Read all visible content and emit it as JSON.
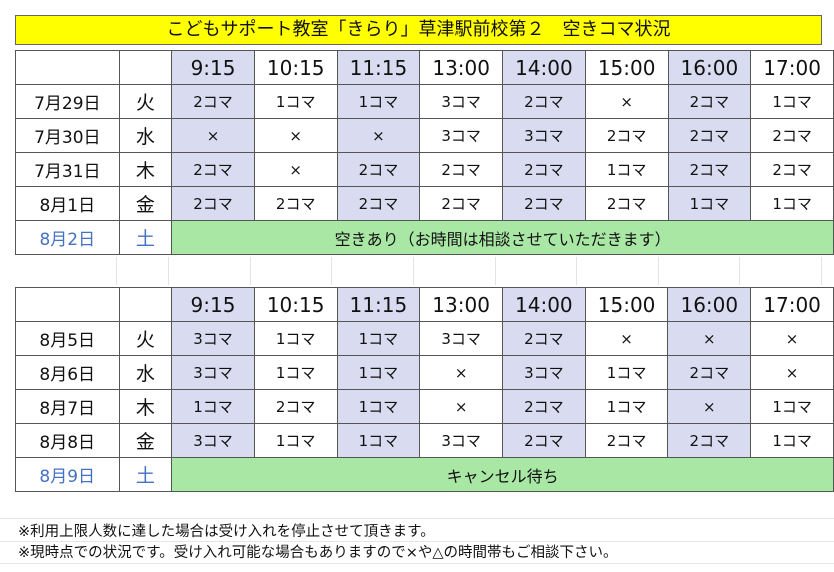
{
  "title": "こどもサポート教室「きらり」草津駅前校第２　空きコマ状況",
  "times": [
    "9:15",
    "10:15",
    "11:15",
    "13:00",
    "14:00",
    "15:00",
    "16:00",
    "17:00"
  ],
  "week1": {
    "rows": [
      {
        "date": "7月29日",
        "dow": "火",
        "cells": [
          "2コマ",
          "1コマ",
          "1コマ",
          "3コマ",
          "2コマ",
          "×",
          "2コマ",
          "1コマ"
        ]
      },
      {
        "date": "7月30日",
        "dow": "水",
        "cells": [
          "×",
          "×",
          "×",
          "3コマ",
          "3コマ",
          "2コマ",
          "2コマ",
          "2コマ"
        ]
      },
      {
        "date": "7月31日",
        "dow": "木",
        "cells": [
          "2コマ",
          "×",
          "2コマ",
          "2コマ",
          "2コマ",
          "1コマ",
          "2コマ",
          "2コマ"
        ]
      },
      {
        "date": "8月1日",
        "dow": "金",
        "cells": [
          "2コマ",
          "2コマ",
          "2コマ",
          "2コマ",
          "2コマ",
          "2コマ",
          "1コマ",
          "1コマ"
        ]
      }
    ],
    "saturday": {
      "date": "8月2日",
      "dow": "土",
      "note": "空きあり（お時間は相談させていただきます）"
    }
  },
  "week2": {
    "rows": [
      {
        "date": "8月5日",
        "dow": "火",
        "cells": [
          "3コマ",
          "1コマ",
          "1コマ",
          "3コマ",
          "2コマ",
          "×",
          "×",
          "×"
        ]
      },
      {
        "date": "8月6日",
        "dow": "水",
        "cells": [
          "3コマ",
          "1コマ",
          "1コマ",
          "×",
          "3コマ",
          "1コマ",
          "2コマ",
          "×"
        ]
      },
      {
        "date": "8月7日",
        "dow": "木",
        "cells": [
          "1コマ",
          "2コマ",
          "1コマ",
          "×",
          "2コマ",
          "1コマ",
          "×",
          "1コマ"
        ]
      },
      {
        "date": "8月8日",
        "dow": "金",
        "cells": [
          "3コマ",
          "1コマ",
          "1コマ",
          "3コマ",
          "2コマ",
          "2コマ",
          "2コマ",
          "1コマ"
        ]
      }
    ],
    "saturday": {
      "date": "8月9日",
      "dow": "土",
      "note": "キャンセル待ち"
    }
  },
  "notes": [
    "※利用上限人数に達した場合は受け入れを停止させて頂きます。",
    "※現時点での状況です。受け入れ可能な場合もありますので×や△の時間帯もご相談下さい。"
  ],
  "colors": {
    "title_bg": "#ffff00",
    "shade": "#d9dcf0",
    "saturday_note_bg": "#a9e7a5",
    "saturday_text": "#4472c4"
  }
}
